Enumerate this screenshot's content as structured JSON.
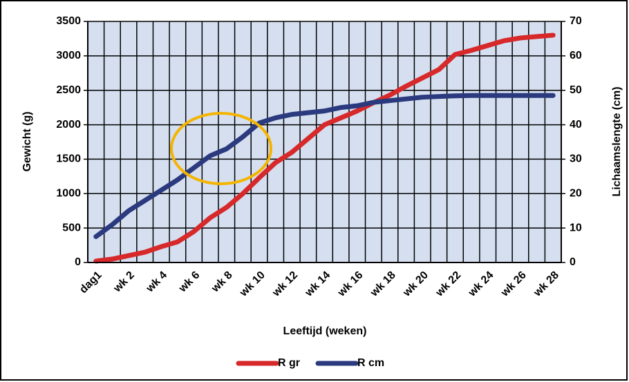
{
  "chart_data": {
    "type": "line",
    "xlabel": "Leeftijd (weken)",
    "ylabel": "Gewicht (g)",
    "y2label": "Lichaamslengte (cm)",
    "categories": [
      "dag1",
      null,
      "wk 2",
      null,
      "wk 4",
      null,
      "wk 6",
      null,
      "wk 8",
      null,
      "wk 10",
      null,
      "wk 12",
      null,
      "wk 14",
      null,
      "wk 16",
      null,
      "wk 18",
      null,
      "wk 20",
      null,
      "wk 22",
      null,
      "wk 24",
      null,
      "wk 26",
      null,
      "wk 28"
    ],
    "series": [
      {
        "name": "R gr",
        "color": "#d7282a",
        "axis": "y",
        "values": [
          20,
          50,
          100,
          150,
          230,
          300,
          450,
          650,
          800,
          1000,
          1230,
          1450,
          1600,
          1800,
          2000,
          2100,
          2200,
          2320,
          2430,
          2560,
          2680,
          2800,
          3020,
          3080,
          3150,
          3220,
          3260,
          3280,
          3300
        ]
      },
      {
        "name": "R cm",
        "color": "#2b3a7e",
        "axis": "y2",
        "values": [
          7.5,
          11,
          15,
          18,
          21,
          24,
          27.5,
          31,
          33,
          36.5,
          40.5,
          42,
          43,
          43.5,
          44,
          45,
          45.5,
          46.5,
          47,
          47.5,
          48,
          48.2,
          48.4,
          48.5,
          48.5,
          48.5,
          48.5,
          48.5,
          48.5
        ]
      }
    ],
    "ylim": [
      0,
      3500
    ],
    "yticks": [
      0,
      500,
      1000,
      1500,
      2000,
      2500,
      3000,
      3500
    ],
    "y2lim": [
      0,
      70
    ],
    "y2ticks": [
      0,
      10,
      20,
      30,
      40,
      50,
      60,
      70
    ],
    "grid": true,
    "legend": "bottom"
  }
}
